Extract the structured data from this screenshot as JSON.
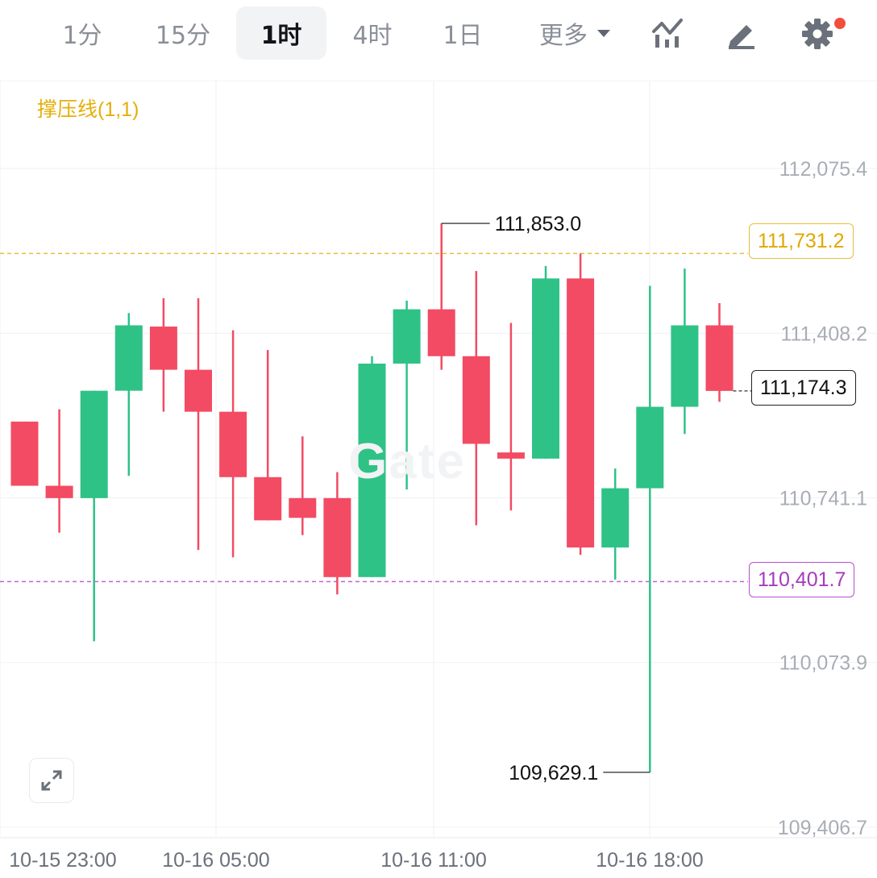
{
  "toolbar": {
    "tabs": [
      {
        "label": "1分",
        "active": false
      },
      {
        "label": "15分",
        "active": false
      },
      {
        "label": "1时",
        "active": true
      },
      {
        "label": "4时",
        "active": false
      },
      {
        "label": "1日",
        "active": false
      }
    ],
    "more_label": "更多",
    "icons": [
      "indicator-chart-icon",
      "draw-pen-icon",
      "settings-gear-icon"
    ],
    "notification_dot_color": "#f24e3c"
  },
  "indicator_label": "撑压线(1,1)",
  "watermark": "Gate",
  "colors": {
    "up": "#2ec287",
    "down": "#f24b63",
    "resistance": "#e6be3c",
    "support": "#c062d6",
    "grid": "#f0f1f3",
    "axis_text": "#a9adb5"
  },
  "chart_data": {
    "type": "candlestick",
    "timeframe": "1时",
    "y_axis_ticks": [
      "112,075.4",
      "111,408.2",
      "110,741.1",
      "110,073.9",
      "109,406.7"
    ],
    "x_axis_ticks": [
      "10-15 23:00",
      "10-16 05:00",
      "10-16 11:00",
      "10-16 18:00"
    ],
    "resistance_line": {
      "value": 111731.2,
      "label": "111,731.2"
    },
    "support_line": {
      "value": 110401.7,
      "label": "110,401.7"
    },
    "current_price": {
      "value": 111174.3,
      "label": "111,174.3"
    },
    "high_annotation": {
      "value": 111853.0,
      "label": "111,853.0",
      "candle": 12
    },
    "low_annotation": {
      "value": 109629.1,
      "label": "109,629.1",
      "candle": 18
    },
    "candles": [
      {
        "open": 111050,
        "close": 110790,
        "high": 111050,
        "low": 110790
      },
      {
        "open": 110790,
        "close": 110740,
        "high": 111100,
        "low": 110600
      },
      {
        "open": 110740,
        "close": 111175,
        "high": 111175,
        "low": 110160
      },
      {
        "open": 111175,
        "close": 111440,
        "high": 111490,
        "low": 110830
      },
      {
        "open": 111435,
        "close": 111260,
        "high": 111550,
        "low": 111090
      },
      {
        "open": 111260,
        "close": 111090,
        "high": 111550,
        "low": 110530
      },
      {
        "open": 111090,
        "close": 110825,
        "high": 111420,
        "low": 110500
      },
      {
        "open": 110825,
        "close": 110650,
        "high": 111340,
        "low": 110650
      },
      {
        "open": 110740,
        "close": 110660,
        "high": 110990,
        "low": 110590
      },
      {
        "open": 110740,
        "close": 110420,
        "high": 110845,
        "low": 110350
      },
      {
        "open": 110420,
        "close": 111285,
        "high": 111315,
        "low": 110420
      },
      {
        "open": 111285,
        "close": 111505,
        "high": 111540,
        "low": 110775
      },
      {
        "open": 111505,
        "close": 111315,
        "high": 111853.0,
        "low": 111260
      },
      {
        "open": 111315,
        "close": 110960,
        "high": 111660,
        "low": 110630
      },
      {
        "open": 110925,
        "close": 110900,
        "high": 111450,
        "low": 110690
      },
      {
        "open": 110900,
        "close": 111630,
        "high": 111680,
        "low": 110900
      },
      {
        "open": 111630,
        "close": 110540,
        "high": 111731.2,
        "low": 110510
      },
      {
        "open": 110540,
        "close": 110780,
        "high": 110860,
        "low": 110410
      },
      {
        "open": 110780,
        "close": 111110,
        "high": 111600,
        "low": 109629.1
      },
      {
        "open": 111110,
        "close": 111440,
        "high": 111670,
        "low": 111000
      },
      {
        "open": 111440,
        "close": 111174.3,
        "high": 111530,
        "low": 111130
      }
    ]
  }
}
